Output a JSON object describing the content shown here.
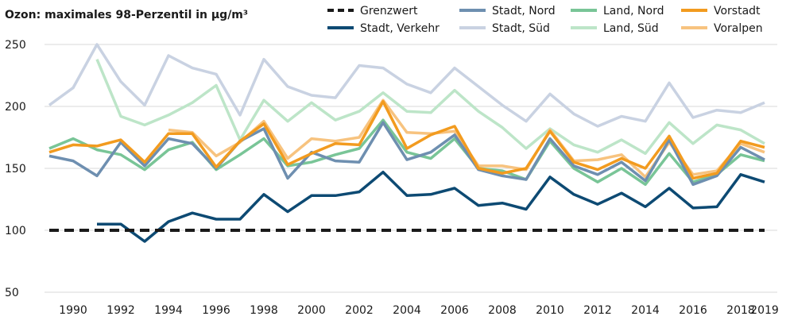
{
  "chart_data": {
    "type": "line",
    "title": "Ozon: maximales 98-Perzentil in µg/m³",
    "ylim": [
      50,
      250
    ],
    "yticks": [
      50,
      100,
      150,
      200,
      250
    ],
    "xlim": [
      1989,
      2019
    ],
    "xticks": [
      1990,
      1992,
      1994,
      1996,
      1998,
      2000,
      2002,
      2004,
      2006,
      2008,
      2010,
      2012,
      2014,
      2016,
      2018,
      2019
    ],
    "x": [
      1989,
      1990,
      1991,
      1992,
      1993,
      1994,
      1995,
      1996,
      1997,
      1998,
      1999,
      2000,
      2001,
      2002,
      2003,
      2004,
      2005,
      2006,
      2007,
      2008,
      2009,
      2010,
      2011,
      2012,
      2013,
      2014,
      2015,
      2016,
      2017,
      2018,
      2019
    ],
    "grid": "horizontal",
    "legend_position": "top",
    "series": [
      {
        "name": "Grenzwert",
        "color": "#1a1a1a",
        "dashed": true,
        "values": [
          100,
          100,
          100,
          100,
          100,
          100,
          100,
          100,
          100,
          100,
          100,
          100,
          100,
          100,
          100,
          100,
          100,
          100,
          100,
          100,
          100,
          100,
          100,
          100,
          100,
          100,
          100,
          100,
          100,
          100,
          100
        ]
      },
      {
        "name": "Stadt, Verkehr",
        "color": "#0d4a73",
        "values": [
          null,
          null,
          105,
          105,
          91,
          107,
          114,
          109,
          109,
          129,
          115,
          128,
          128,
          131,
          147,
          128,
          129,
          134,
          120,
          122,
          117,
          143,
          129,
          121,
          130,
          119,
          134,
          118,
          119,
          145,
          139
        ]
      },
      {
        "name": "Stadt, Nord",
        "color": "#6e8fb0",
        "values": [
          160,
          156,
          144,
          171,
          152,
          174,
          170,
          150,
          172,
          182,
          142,
          163,
          156,
          155,
          187,
          157,
          163,
          177,
          149,
          144,
          141,
          174,
          152,
          145,
          155,
          140,
          173,
          137,
          144,
          167,
          157
        ]
      },
      {
        "name": "Stadt, Süd",
        "color": "#c9d2e2",
        "values": [
          201,
          215,
          250,
          220,
          201,
          241,
          231,
          226,
          193,
          238,
          216,
          209,
          207,
          233,
          231,
          218,
          211,
          231,
          216,
          201,
          188,
          210,
          194,
          184,
          192,
          188,
          219,
          191,
          197,
          195,
          203
        ]
      },
      {
        "name": "Land, Nord",
        "color": "#79c597",
        "values": [
          166,
          174,
          165,
          161,
          149,
          165,
          171,
          149,
          161,
          174,
          152,
          155,
          161,
          166,
          189,
          163,
          158,
          174,
          150,
          148,
          141,
          172,
          150,
          139,
          150,
          137,
          162,
          139,
          145,
          161,
          156
        ]
      },
      {
        "name": "Land, Süd",
        "color": "#bde5c8",
        "values": [
          null,
          null,
          238,
          192,
          185,
          193,
          203,
          217,
          173,
          205,
          188,
          203,
          189,
          196,
          211,
          196,
          195,
          213,
          196,
          183,
          166,
          182,
          169,
          163,
          173,
          162,
          187,
          170,
          185,
          181,
          170
        ]
      },
      {
        "name": "Vorstadt",
        "color": "#f29b1f",
        "values": [
          163,
          169,
          168,
          173,
          155,
          178,
          178,
          151,
          172,
          186,
          153,
          162,
          170,
          169,
          204,
          166,
          177,
          184,
          150,
          146,
          150,
          180,
          155,
          149,
          158,
          150,
          176,
          142,
          146,
          172,
          167
        ]
      },
      {
        "name": "Voralpen",
        "color": "#f7c37f",
        "values": [
          null,
          null,
          null,
          null,
          null,
          181,
          179,
          160,
          171,
          188,
          158,
          174,
          172,
          175,
          205,
          179,
          178,
          180,
          152,
          152,
          149,
          181,
          156,
          157,
          161,
          143,
          171,
          145,
          148,
          170,
          163
        ]
      }
    ]
  }
}
